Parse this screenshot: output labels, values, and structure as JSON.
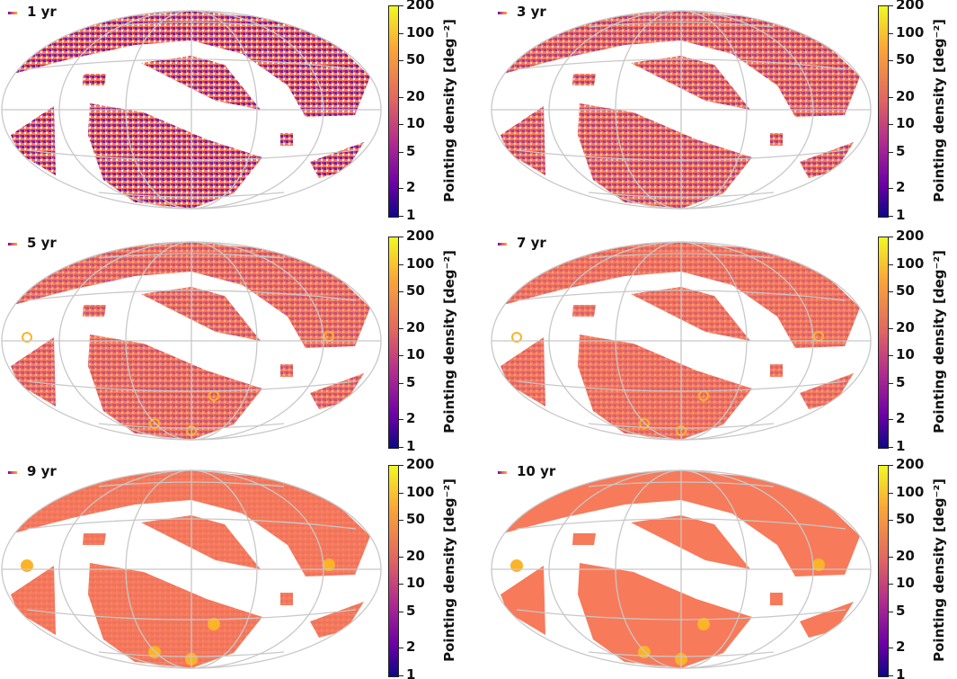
{
  "chart_data": {
    "type": "heatmap",
    "projection": "all-sky elliptical (Aitoff-like)",
    "grid": true,
    "panels": [
      {
        "label": "1 yr"
      },
      {
        "label": "3 yr"
      },
      {
        "label": "5 yr"
      },
      {
        "label": "7 yr"
      },
      {
        "label": "9 yr"
      },
      {
        "label": "10 yr"
      }
    ],
    "colorbar": {
      "label": "Pointing density [deg⁻²]",
      "scale": "log",
      "range": [
        1,
        200
      ],
      "ticks": [
        "1",
        "2",
        "5",
        "10",
        "20",
        "50",
        "100",
        "200"
      ],
      "colormap": "plasma",
      "colors": [
        "#0d0887",
        "#6a00a8",
        "#b12a90",
        "#e16462",
        "#fca636",
        "#f0f921"
      ]
    },
    "colors": {
      "coverage": "#f77a5a",
      "sparse": "#6a1aa8",
      "hotspot": "#fcb326",
      "grid": "#c8c8c8"
    }
  }
}
